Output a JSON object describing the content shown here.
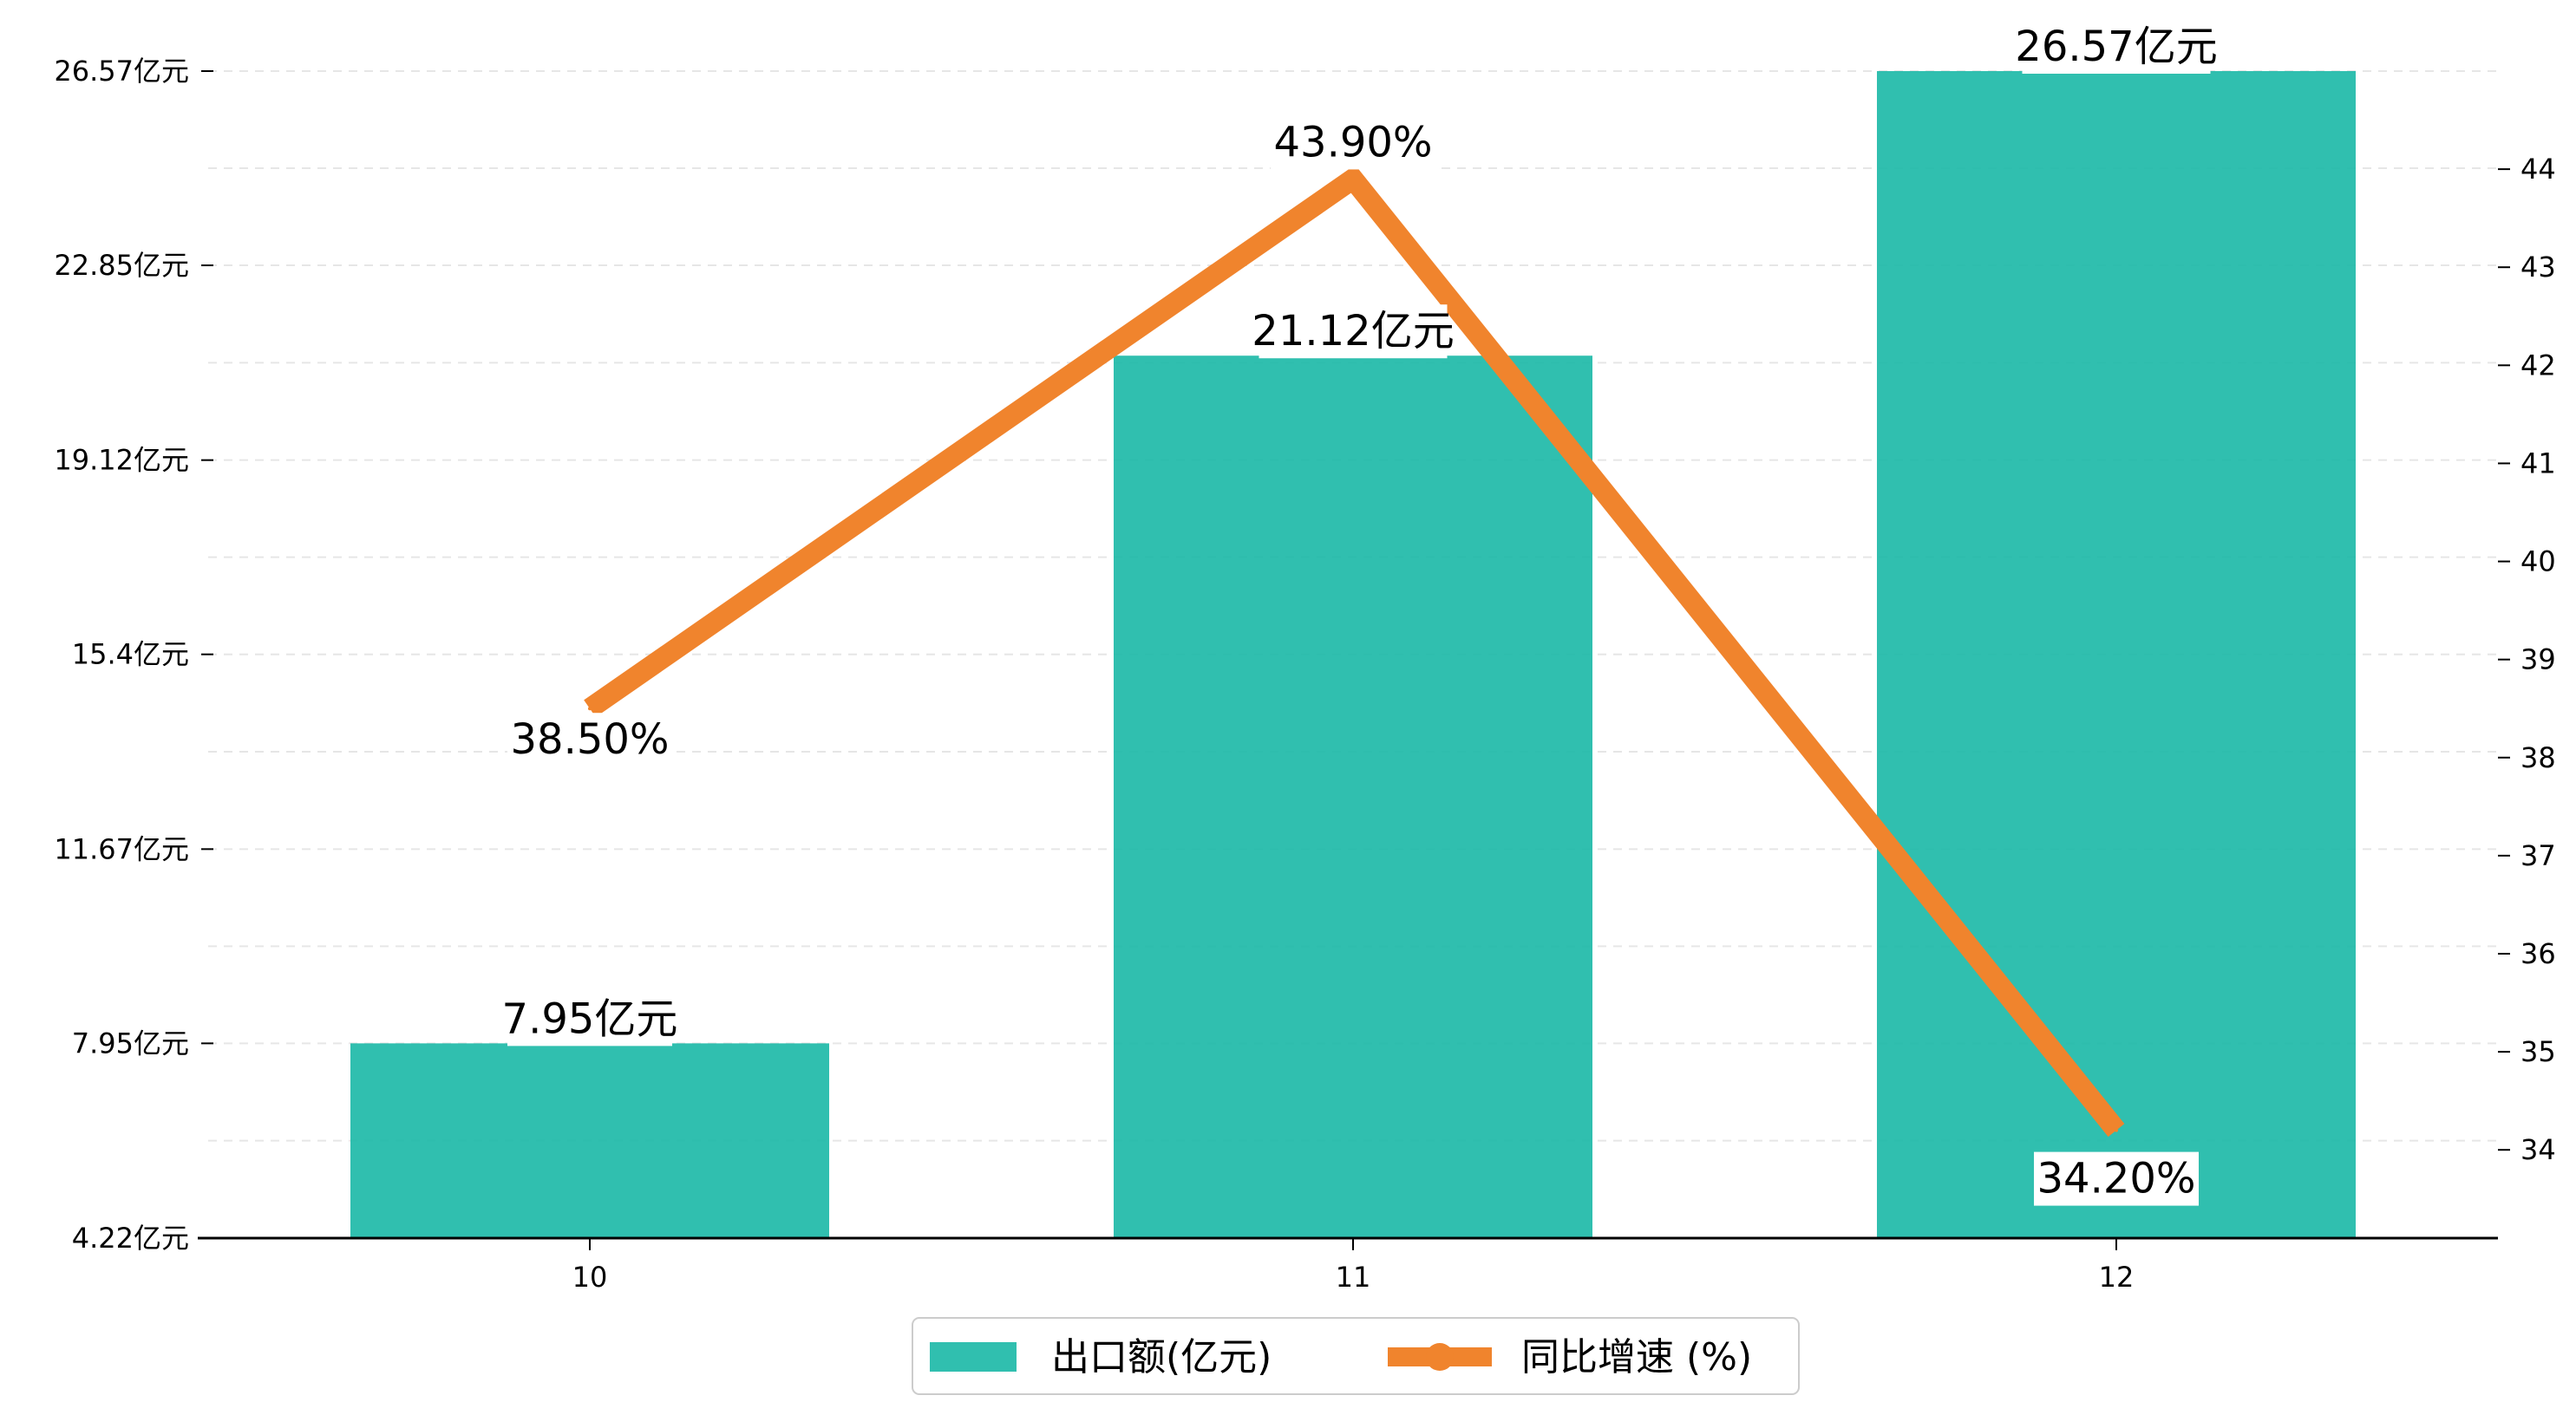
{
  "chart_data": {
    "type": "bar+line",
    "categories": [
      "10",
      "11",
      "12"
    ],
    "series": [
      {
        "name": "出口额(亿元)",
        "type": "bar",
        "axis": "left",
        "values": [
          7.95,
          21.12,
          26.57
        ],
        "value_labels": [
          "7.95亿元",
          "21.12亿元",
          "26.57亿元"
        ],
        "color": "#1ab8a6"
      },
      {
        "name": "同比增速 (%)",
        "type": "line",
        "axis": "right",
        "values": [
          38.5,
          43.9,
          34.2
        ],
        "value_labels": [
          "38.50%",
          "43.90%",
          "34.20%"
        ],
        "color": "#f0842d"
      }
    ],
    "y_left": {
      "ylim": [
        4.22,
        26.57
      ],
      "ticks": [
        4.22,
        7.95,
        11.67,
        15.4,
        19.12,
        22.85,
        26.57
      ],
      "tick_labels": [
        "4.22亿元",
        "7.95亿元",
        "11.67亿元",
        "15.4亿元",
        "19.12亿元",
        "22.85亿元",
        "26.57亿元"
      ]
    },
    "y_right": {
      "ylim": [
        33.1,
        45.0
      ],
      "ticks": [
        34,
        35,
        36,
        37,
        38,
        39,
        40,
        41,
        42,
        43,
        44
      ],
      "tick_labels": [
        "34",
        "35",
        "36",
        "37",
        "38",
        "39",
        "40",
        "41",
        "42",
        "43",
        "44"
      ]
    },
    "grid": true,
    "legend_position": "bottom-center"
  }
}
